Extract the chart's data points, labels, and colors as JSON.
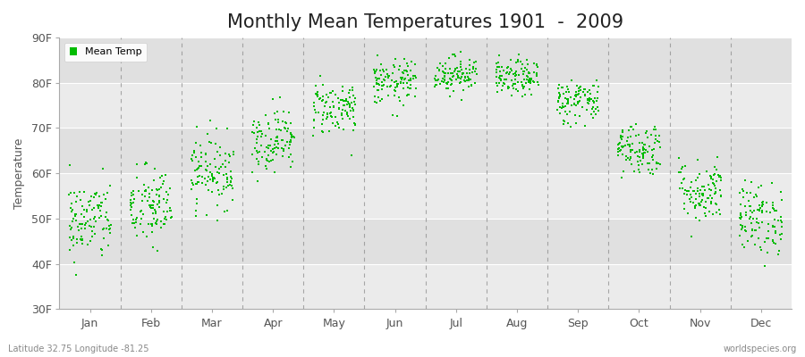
{
  "title": "Monthly Mean Temperatures 1901  -  2009",
  "ylabel": "Temperature",
  "subtitle": "Latitude 32.75 Longitude -81.25",
  "watermark": "worldspecies.org",
  "months": [
    "Jan",
    "Feb",
    "Mar",
    "Apr",
    "May",
    "Jun",
    "Jul",
    "Aug",
    "Sep",
    "Oct",
    "Nov",
    "Dec"
  ],
  "mean_temps_F": [
    49.5,
    52.5,
    60.5,
    67.5,
    74.5,
    80.0,
    82.0,
    81.0,
    76.0,
    65.5,
    56.0,
    50.0
  ],
  "std_devs": [
    4.5,
    4.5,
    4.0,
    3.5,
    3.0,
    2.5,
    2.0,
    2.0,
    2.5,
    3.0,
    3.5,
    4.0
  ],
  "n_years": 109,
  "ylim": [
    30,
    90
  ],
  "yticks": [
    30,
    40,
    50,
    60,
    70,
    80,
    90
  ],
  "ytick_labels": [
    "30F",
    "40F",
    "50F",
    "60F",
    "70F",
    "80F",
    "90F"
  ],
  "dot_color": "#00BB00",
  "dot_size": 2.5,
  "bg_color": "#ffffff",
  "plot_bg_color": "#ebebeb",
  "plot_bg_alt": "#e0e0e0",
  "grid_color": "#ffffff",
  "dashed_line_color": "#888888",
  "title_fontsize": 15,
  "label_fontsize": 9,
  "tick_fontsize": 9
}
